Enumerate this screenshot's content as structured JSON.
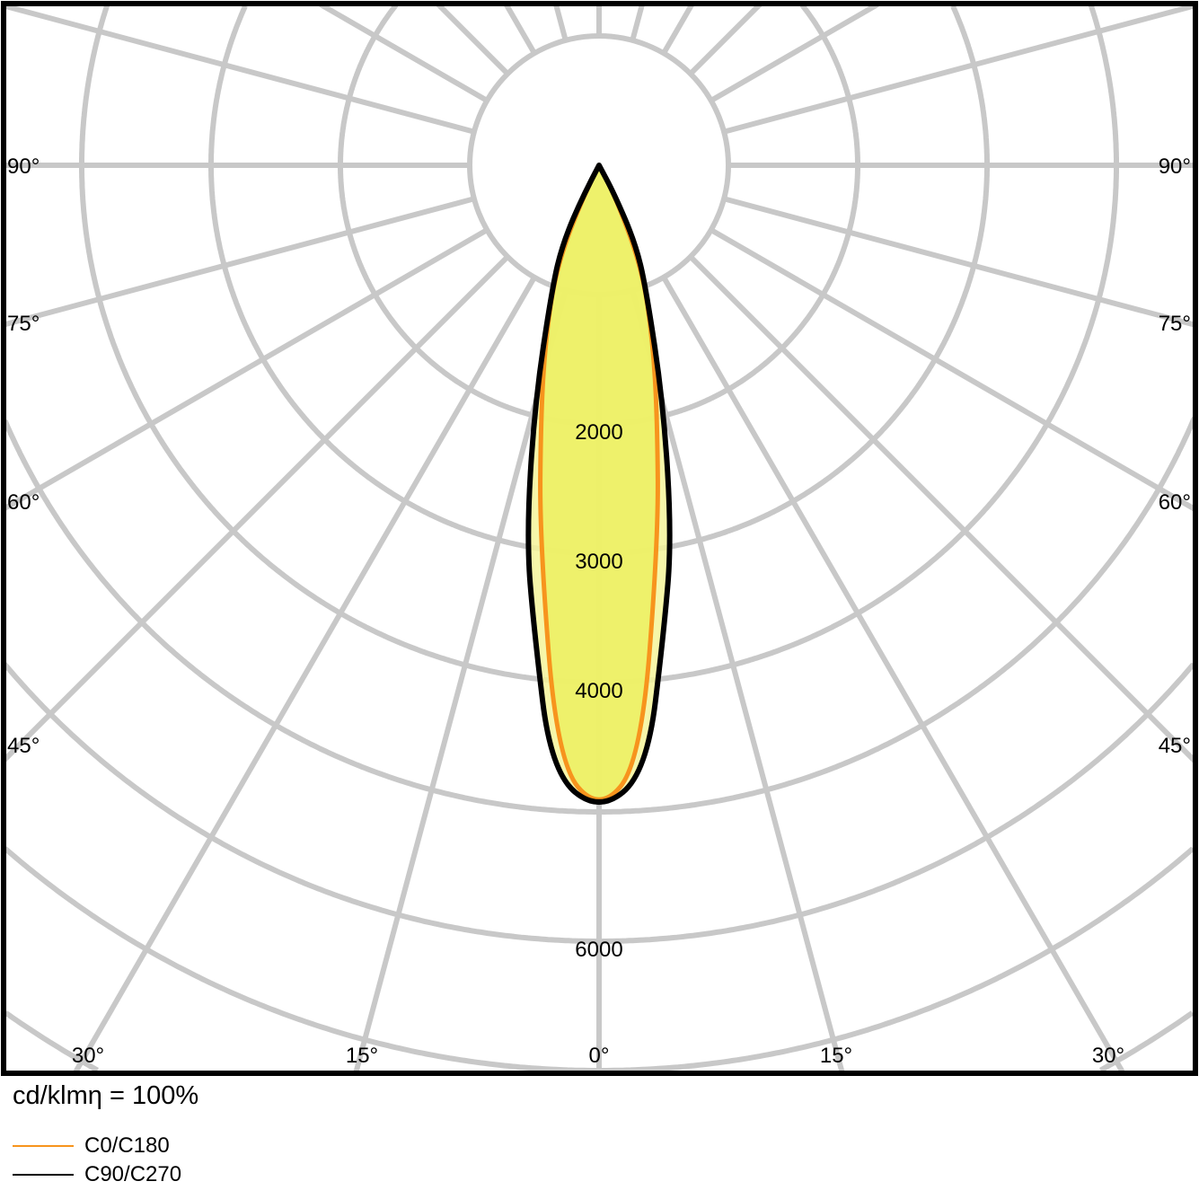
{
  "chart_data": {
    "type": "polar",
    "unit_label": "cd/klmη = 100%",
    "radial_ticks": [
      "2000",
      "3000",
      "4000",
      "6000"
    ],
    "radial_max": 8000,
    "ring_step": 1000,
    "angle_labels_left": [
      "90°",
      "75°",
      "60°",
      "45°"
    ],
    "angle_labels_right": [
      "90°",
      "75°",
      "60°",
      "45°"
    ],
    "angle_labels_bottom": [
      "30°",
      "15°",
      "0°",
      "15°",
      "30°"
    ],
    "grid": true,
    "colors": {
      "grid": "#c8c8c8",
      "C0/C180": "#f7941d",
      "C90/C270": "#000000",
      "fill_inner": "#ecf060",
      "fill_outer": "#f4f49a"
    },
    "series": [
      {
        "name": "C0/C180",
        "angles_deg": [
          0,
          4,
          9,
          13,
          17,
          22.5,
          27,
          30
        ],
        "intensity": [
          5000,
          4630,
          2930,
          2000,
          1420,
          870,
          300,
          0
        ]
      },
      {
        "name": "C90/C270",
        "angles_deg": [
          0,
          4.5,
          8,
          11,
          15,
          21,
          25,
          28,
          30
        ],
        "intensity": [
          5000,
          4710,
          3620,
          2940,
          1930,
          1010,
          660,
          250,
          0
        ]
      }
    ]
  }
}
